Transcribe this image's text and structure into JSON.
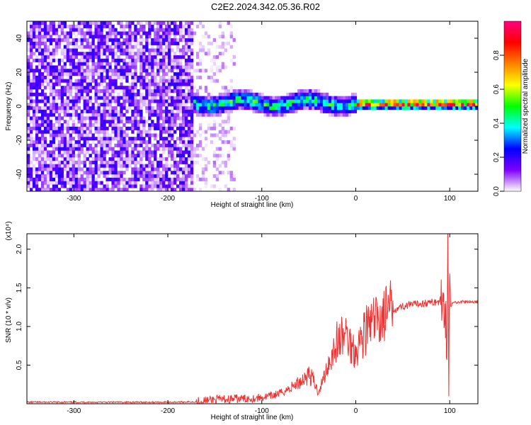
{
  "title": "C2E2.2024.342.05.36.R02",
  "chart_data": [
    {
      "type": "heatmap",
      "xlabel": "Height of straight line (km)",
      "ylabel": "Frequency (Hz)",
      "xlim": [
        -350,
        130
      ],
      "ylim": [
        -50,
        50
      ],
      "x_ticks": [
        -300,
        -200,
        -100,
        0,
        100
      ],
      "y_ticks": [
        -40,
        -20,
        0,
        20,
        40
      ],
      "colorbar": {
        "label": "Normalized spectral amplitude",
        "range": [
          0,
          1
        ],
        "ticks": [
          "0.0",
          "0.2",
          "0.4",
          "0.6",
          "0.8"
        ],
        "tick_values": [
          0.0,
          0.2,
          0.4,
          0.6,
          0.8
        ],
        "colormap": [
          "#ffffff",
          "#7f00ff",
          "#0000ff",
          "#00ffff",
          "#00ff00",
          "#ffff00",
          "#ff8000",
          "#ff0000",
          "#ff0080"
        ]
      },
      "regions": [
        {
          "x_range": [
            -350,
            -175
          ],
          "freq_range": [
            -50,
            50
          ],
          "level": 0.12,
          "pattern": "broadband noise"
        },
        {
          "x_range": [
            -175,
            -130
          ],
          "freq_range": [
            -50,
            50
          ],
          "level": 0.06,
          "pattern": "fading noise"
        },
        {
          "x_range": [
            -175,
            0
          ],
          "freq_center": 2,
          "freq_halfwidth": 6,
          "level": 0.45,
          "pattern": "scattered signal band"
        },
        {
          "x_range": [
            0,
            130
          ],
          "freq_center": 1.5,
          "freq_halfwidth": 3,
          "level": 0.9,
          "pattern": "steady tone"
        }
      ],
      "grid": false
    },
    {
      "type": "line",
      "xlabel": "Height of straight line (km)",
      "ylabel": "SNR (10 * v/v)",
      "y_multiplier": "(x10⁴)",
      "xlim": [
        -350,
        130
      ],
      "ylim": [
        0,
        2.2
      ],
      "x_ticks": [
        -300,
        -200,
        -100,
        0,
        100
      ],
      "y_ticks": [
        0.5,
        1.0,
        1.5,
        2.0
      ],
      "y_tick_labels": [
        "0.5",
        "1.0",
        "1.5",
        "2.0"
      ],
      "color": "#ee3333",
      "x": [
        -350,
        -300,
        -250,
        -200,
        -170,
        -150,
        -130,
        -110,
        -100,
        -90,
        -80,
        -70,
        -60,
        -50,
        -45,
        -40,
        -35,
        -30,
        -25,
        -20,
        -15,
        -10,
        -5,
        0,
        10,
        20,
        30,
        40,
        50,
        60,
        70,
        80,
        85,
        90,
        95,
        97,
        98,
        99,
        100,
        101,
        103,
        105,
        110,
        120,
        130
      ],
      "y": [
        0.02,
        0.02,
        0.02,
        0.02,
        0.025,
        0.05,
        0.06,
        0.07,
        0.08,
        0.1,
        0.14,
        0.2,
        0.28,
        0.38,
        0.3,
        0.15,
        0.3,
        0.5,
        0.65,
        0.8,
        0.85,
        0.9,
        0.75,
        0.7,
        0.95,
        1.05,
        1.15,
        1.22,
        1.26,
        1.28,
        1.3,
        1.31,
        1.32,
        1.32,
        1.32,
        0.8,
        2.15,
        0.3,
        1.7,
        1.25,
        1.3,
        1.31,
        1.32,
        1.32,
        1.32
      ],
      "grid": false
    }
  ]
}
